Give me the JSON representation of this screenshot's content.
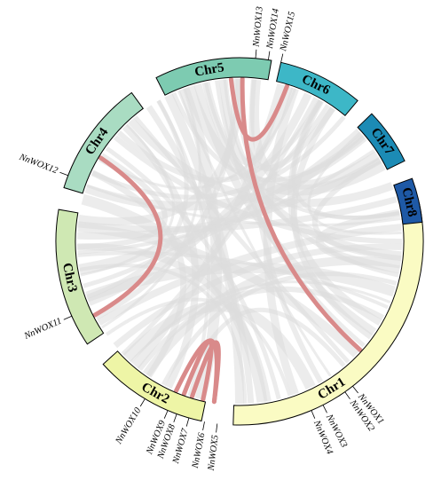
{
  "chromosomes": [
    {
      "id": "chr1",
      "label": "Chr1",
      "color": "#fafbc3"
    },
    {
      "id": "chr2",
      "label": "Chr2",
      "color": "#eef5a6"
    },
    {
      "id": "chr3",
      "label": "Chr3",
      "color": "#cfe8b3"
    },
    {
      "id": "chr4",
      "label": "Chr4",
      "color": "#a9dcc2"
    },
    {
      "id": "chr5",
      "label": "Chr5",
      "color": "#7dcbb1"
    },
    {
      "id": "chr6",
      "label": "Chr6",
      "color": "#3db7c7"
    },
    {
      "id": "chr7",
      "label": "Chr7",
      "color": "#1c8bb5"
    },
    {
      "id": "chr8",
      "label": "Chr8",
      "color": "#1e59a6"
    }
  ],
  "genes": [
    {
      "id": "nnwox1",
      "label": "NnWOX1"
    },
    {
      "id": "nnwox2",
      "label": "NnWOX2"
    },
    {
      "id": "nnwox3",
      "label": "NnWOX3"
    },
    {
      "id": "nnwox4",
      "label": "NnWOX4"
    },
    {
      "id": "nnwox5",
      "label": "NnWOX5"
    },
    {
      "id": "nnwox6",
      "label": "NnWOX6"
    },
    {
      "id": "nnwox7",
      "label": "NnWOX7"
    },
    {
      "id": "nnwox8",
      "label": "NnWOX8"
    },
    {
      "id": "nnwox9",
      "label": "NnWOX9"
    },
    {
      "id": "nnwox10",
      "label": "NnWOX10"
    },
    {
      "id": "nnwox11",
      "label": "NnWOX11"
    },
    {
      "id": "nnwox12",
      "label": "NnWOX12"
    },
    {
      "id": "nnwox13",
      "label": "NnWOX13"
    },
    {
      "id": "nnwox14",
      "label": "NnWOX14"
    },
    {
      "id": "nnwox15",
      "label": "NnWOX15"
    }
  ],
  "segmental_duplications": [
    {
      "from": "NnWOX1",
      "to": "NnWOX14"
    },
    {
      "from": "NnWOX13",
      "to": "NnWOX15"
    },
    {
      "from": "NnWOX11",
      "to": "NnWOX12"
    },
    {
      "from": "NnWOX5",
      "to": "NnWOX9"
    },
    {
      "from": "NnWOX6",
      "to": "NnWOX8"
    },
    {
      "from": "NnWOX5",
      "to": "NnWOX7"
    }
  ],
  "colors": {
    "highlight_link": "#d98a8a",
    "background_link": "#dcdcdc"
  }
}
